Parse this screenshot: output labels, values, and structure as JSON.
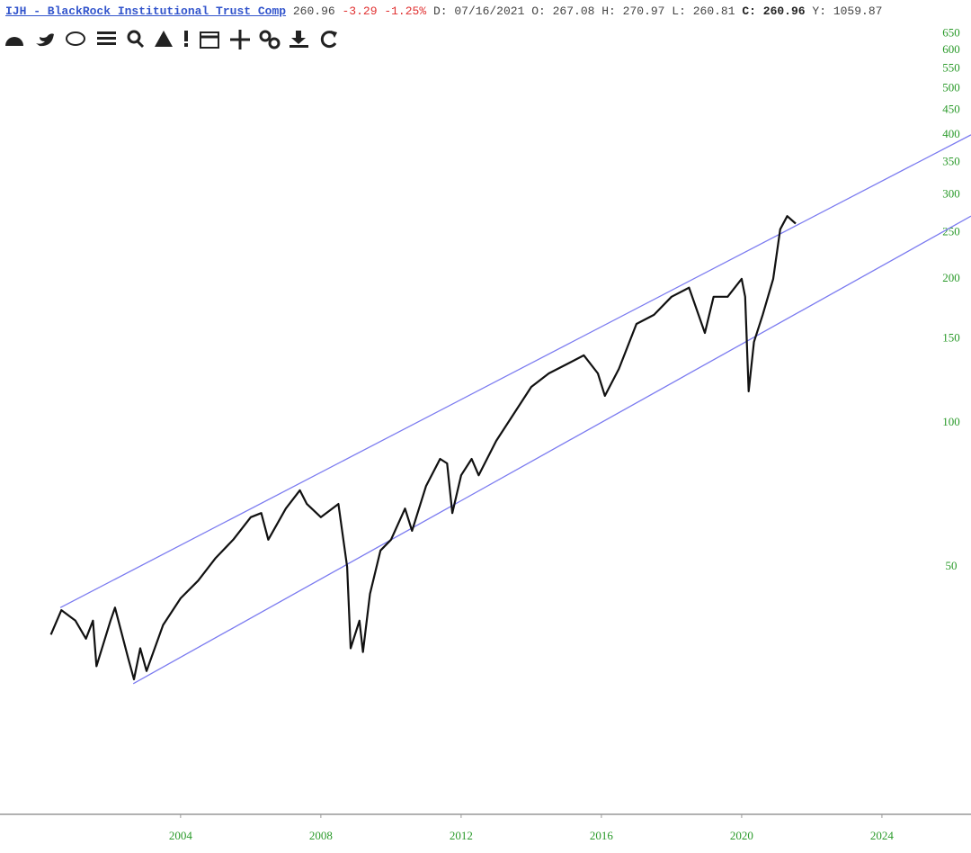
{
  "header": {
    "title": "IJH - BlackRock Institutional Trust Comp",
    "last": "260.96",
    "change": "-3.29",
    "change_pct": "-1.25%",
    "fields": [
      {
        "label": "D:",
        "value": "07/16/2021"
      },
      {
        "label": "O:",
        "value": "267.08"
      },
      {
        "label": "H:",
        "value": "270.97"
      },
      {
        "label": "L:",
        "value": "260.81"
      },
      {
        "label": "C:",
        "value": "260.96"
      },
      {
        "label": "Y:",
        "value": "1059.87"
      }
    ]
  },
  "chart_data": {
    "type": "line",
    "log_y": true,
    "color": "#111111",
    "x": [
      2000.3,
      2000.6,
      2001.0,
      2001.3,
      2001.5,
      2001.6,
      2002.0,
      2002.13,
      2002.5,
      2002.67,
      2002.85,
      2003.03,
      2003.5,
      2004.0,
      2004.5,
      2005.0,
      2005.5,
      2006.0,
      2006.3,
      2006.5,
      2007.0,
      2007.4,
      2007.6,
      2008.0,
      2008.5,
      2008.75,
      2008.85,
      2009.1,
      2009.2,
      2009.4,
      2009.7,
      2010.0,
      2010.4,
      2010.6,
      2011.0,
      2011.4,
      2011.6,
      2011.75,
      2012.0,
      2012.3,
      2012.5,
      2013.0,
      2013.5,
      2014.0,
      2014.5,
      2015.0,
      2015.5,
      2015.9,
      2016.1,
      2016.5,
      2017.0,
      2017.5,
      2018.0,
      2018.5,
      2018.95,
      2019.2,
      2019.6,
      2020.0,
      2020.1,
      2020.2,
      2020.35,
      2020.6,
      2020.9,
      2021.1,
      2021.3,
      2021.54
    ],
    "values": [
      36.1,
      40.6,
      38.6,
      35.4,
      38.6,
      31.0,
      38.6,
      41.1,
      32.3,
      29.1,
      33.8,
      30.3,
      37.8,
      43.0,
      46.8,
      52.2,
      57.0,
      63.5,
      64.8,
      57.0,
      66.2,
      72.3,
      67.7,
      63.5,
      67.7,
      50.0,
      33.8,
      38.6,
      33.2,
      43.9,
      54.1,
      57.0,
      66.2,
      59.5,
      73.8,
      84.1,
      82.3,
      64.8,
      77.7,
      84.1,
      77.7,
      91.7,
      104.4,
      118.9,
      126.9,
      132.5,
      138.4,
      126.9,
      113.9,
      129.7,
      161.0,
      168.2,
      183.5,
      191.7,
      154.2,
      183.5,
      183.5,
      200,
      183.5,
      116.4,
      147.6,
      168.2,
      200,
      253.9,
      270.5,
      260.96
    ],
    "trendline_color": "#7b7bf0",
    "trendlines": [
      {
        "x": [
          2000.57,
          2026.54
        ],
        "values": [
          41.1,
          400
        ]
      },
      {
        "x": [
          2002.65,
          2026.54
        ],
        "values": [
          28.5,
          270.5
        ]
      }
    ],
    "xlim": [
      1998.85,
      2026.54
    ],
    "xticks": [
      2004,
      2008,
      2012,
      2016,
      2020,
      2024
    ],
    "ylim": [
      15.2,
      678
    ],
    "yticks": [
      50,
      100,
      150,
      200,
      250,
      300,
      350,
      400,
      450,
      500,
      550,
      600,
      650
    ],
    "tick_color": "#2a9a2a"
  }
}
